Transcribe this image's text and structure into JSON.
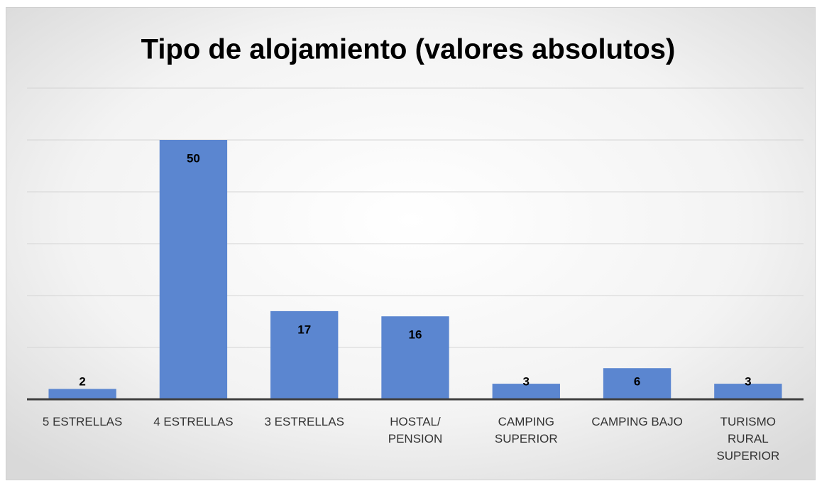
{
  "chart_data": {
    "type": "bar",
    "title": "Tipo de alojamiento (valores absolutos)",
    "categories": [
      "5 ESTRELLAS",
      "4 ESTRELLAS",
      "3 ESTRELLAS",
      "HOSTAL/\nPENSION",
      "CAMPING\nSUPERIOR",
      "CAMPING BAJO",
      "TURISMO\nRURAL\nSUPERIOR"
    ],
    "values": [
      2,
      50,
      17,
      16,
      3,
      6,
      3
    ],
    "color": "#5b86d0",
    "ylim": [
      0,
      60
    ],
    "yticks": [
      0,
      10,
      20,
      30,
      40,
      50,
      60
    ],
    "grid": true
  }
}
